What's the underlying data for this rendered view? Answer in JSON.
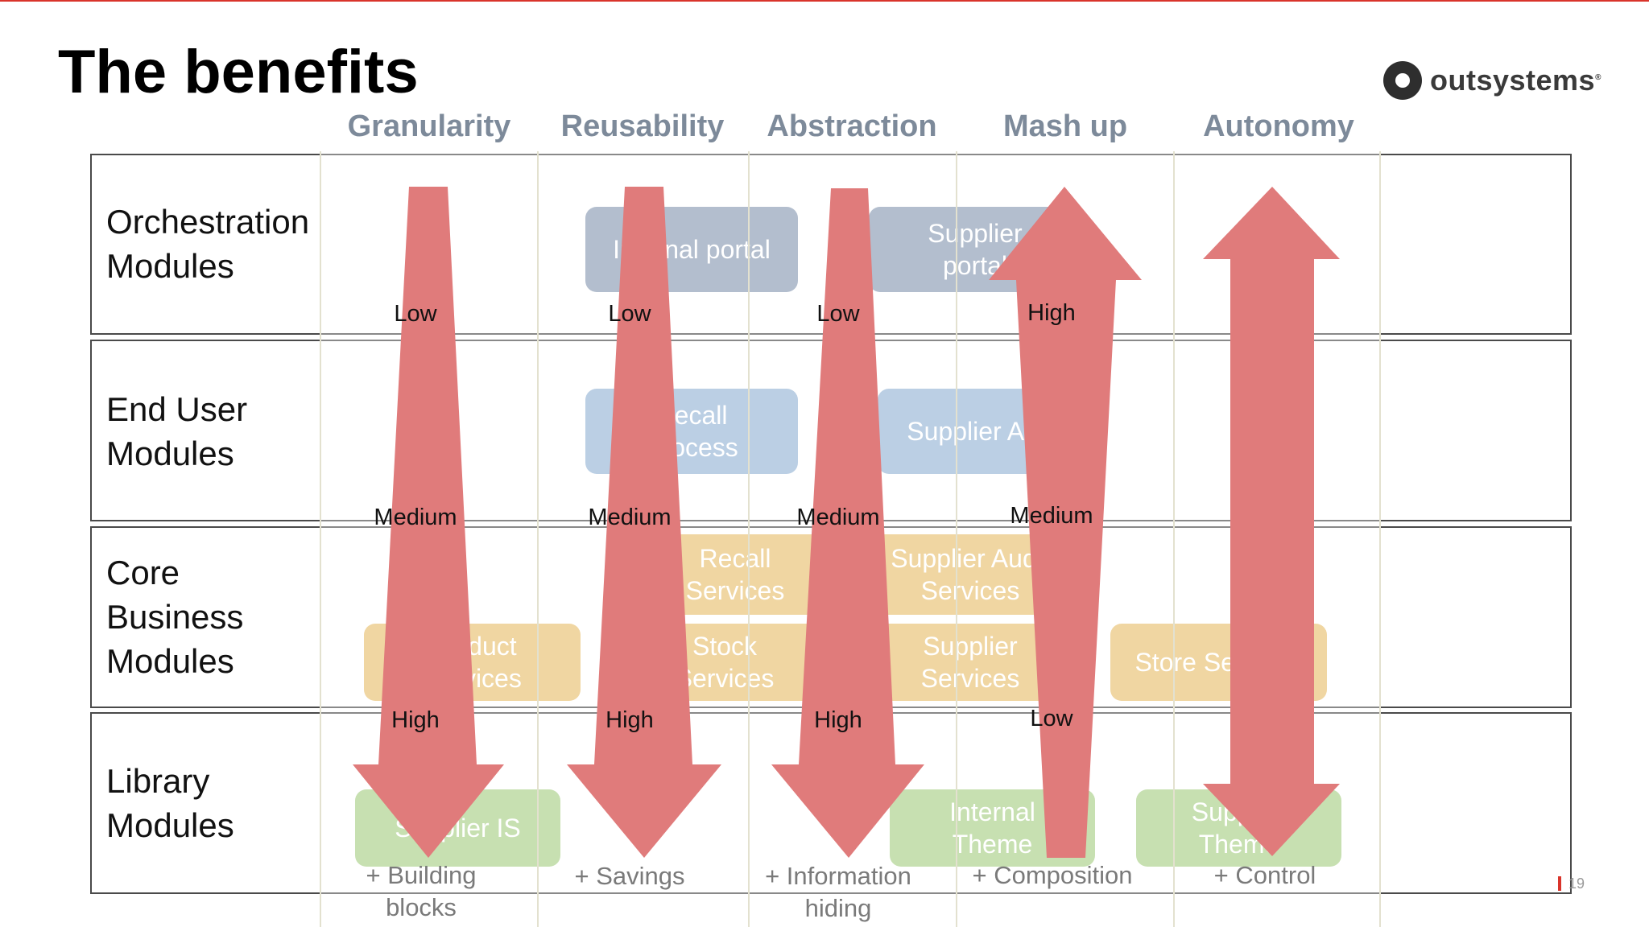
{
  "title": "The benefits",
  "logo": {
    "text": "outsystems",
    "mark": "®"
  },
  "columns": [
    {
      "name": "Granularity",
      "levels": [
        "Low",
        "Medium",
        "High"
      ],
      "benefit": "+ Building\nblocks"
    },
    {
      "name": "Reusability",
      "levels": [
        "Low",
        "Medium",
        "High"
      ],
      "benefit": "+ Savings"
    },
    {
      "name": "Abstraction",
      "levels": [
        "Low",
        "Medium",
        "High"
      ],
      "benefit": "+ Information\nhiding"
    },
    {
      "name": "Mash up",
      "levels": [
        "High",
        "Medium",
        "Low"
      ],
      "benefit": "+ Composition"
    },
    {
      "name": "Autonomy",
      "levels": [],
      "benefit": "+ Control"
    }
  ],
  "rows": [
    {
      "label": "Orchestration\nModules"
    },
    {
      "label": "End User\nModules"
    },
    {
      "label": "Core\nBusiness\nModules"
    },
    {
      "label": "Library\nModules"
    }
  ],
  "modules": {
    "internal_portal": "Internal portal",
    "supplier_portal": "Supplier\nportal",
    "recall_process": "Recall\nProcess",
    "supplier_audit": "Supplier Audit",
    "recall_services": "Recall\nServices",
    "supplier_audit_services": "Supplier Audit\nServices",
    "product_services": "Product\nServices",
    "stock_services": "Stock\nServices",
    "supplier_services": "Supplier\nServices",
    "store_services": "Store Services",
    "supplier_is": "Supplier IS",
    "internal_theme": "Internal\nTheme",
    "supplier_theme": "Supplier\nTheme"
  },
  "page_number": "19",
  "colors": {
    "arrow": "#e07b7b",
    "accent": "#d9342b",
    "header": "#7d8a9a"
  }
}
